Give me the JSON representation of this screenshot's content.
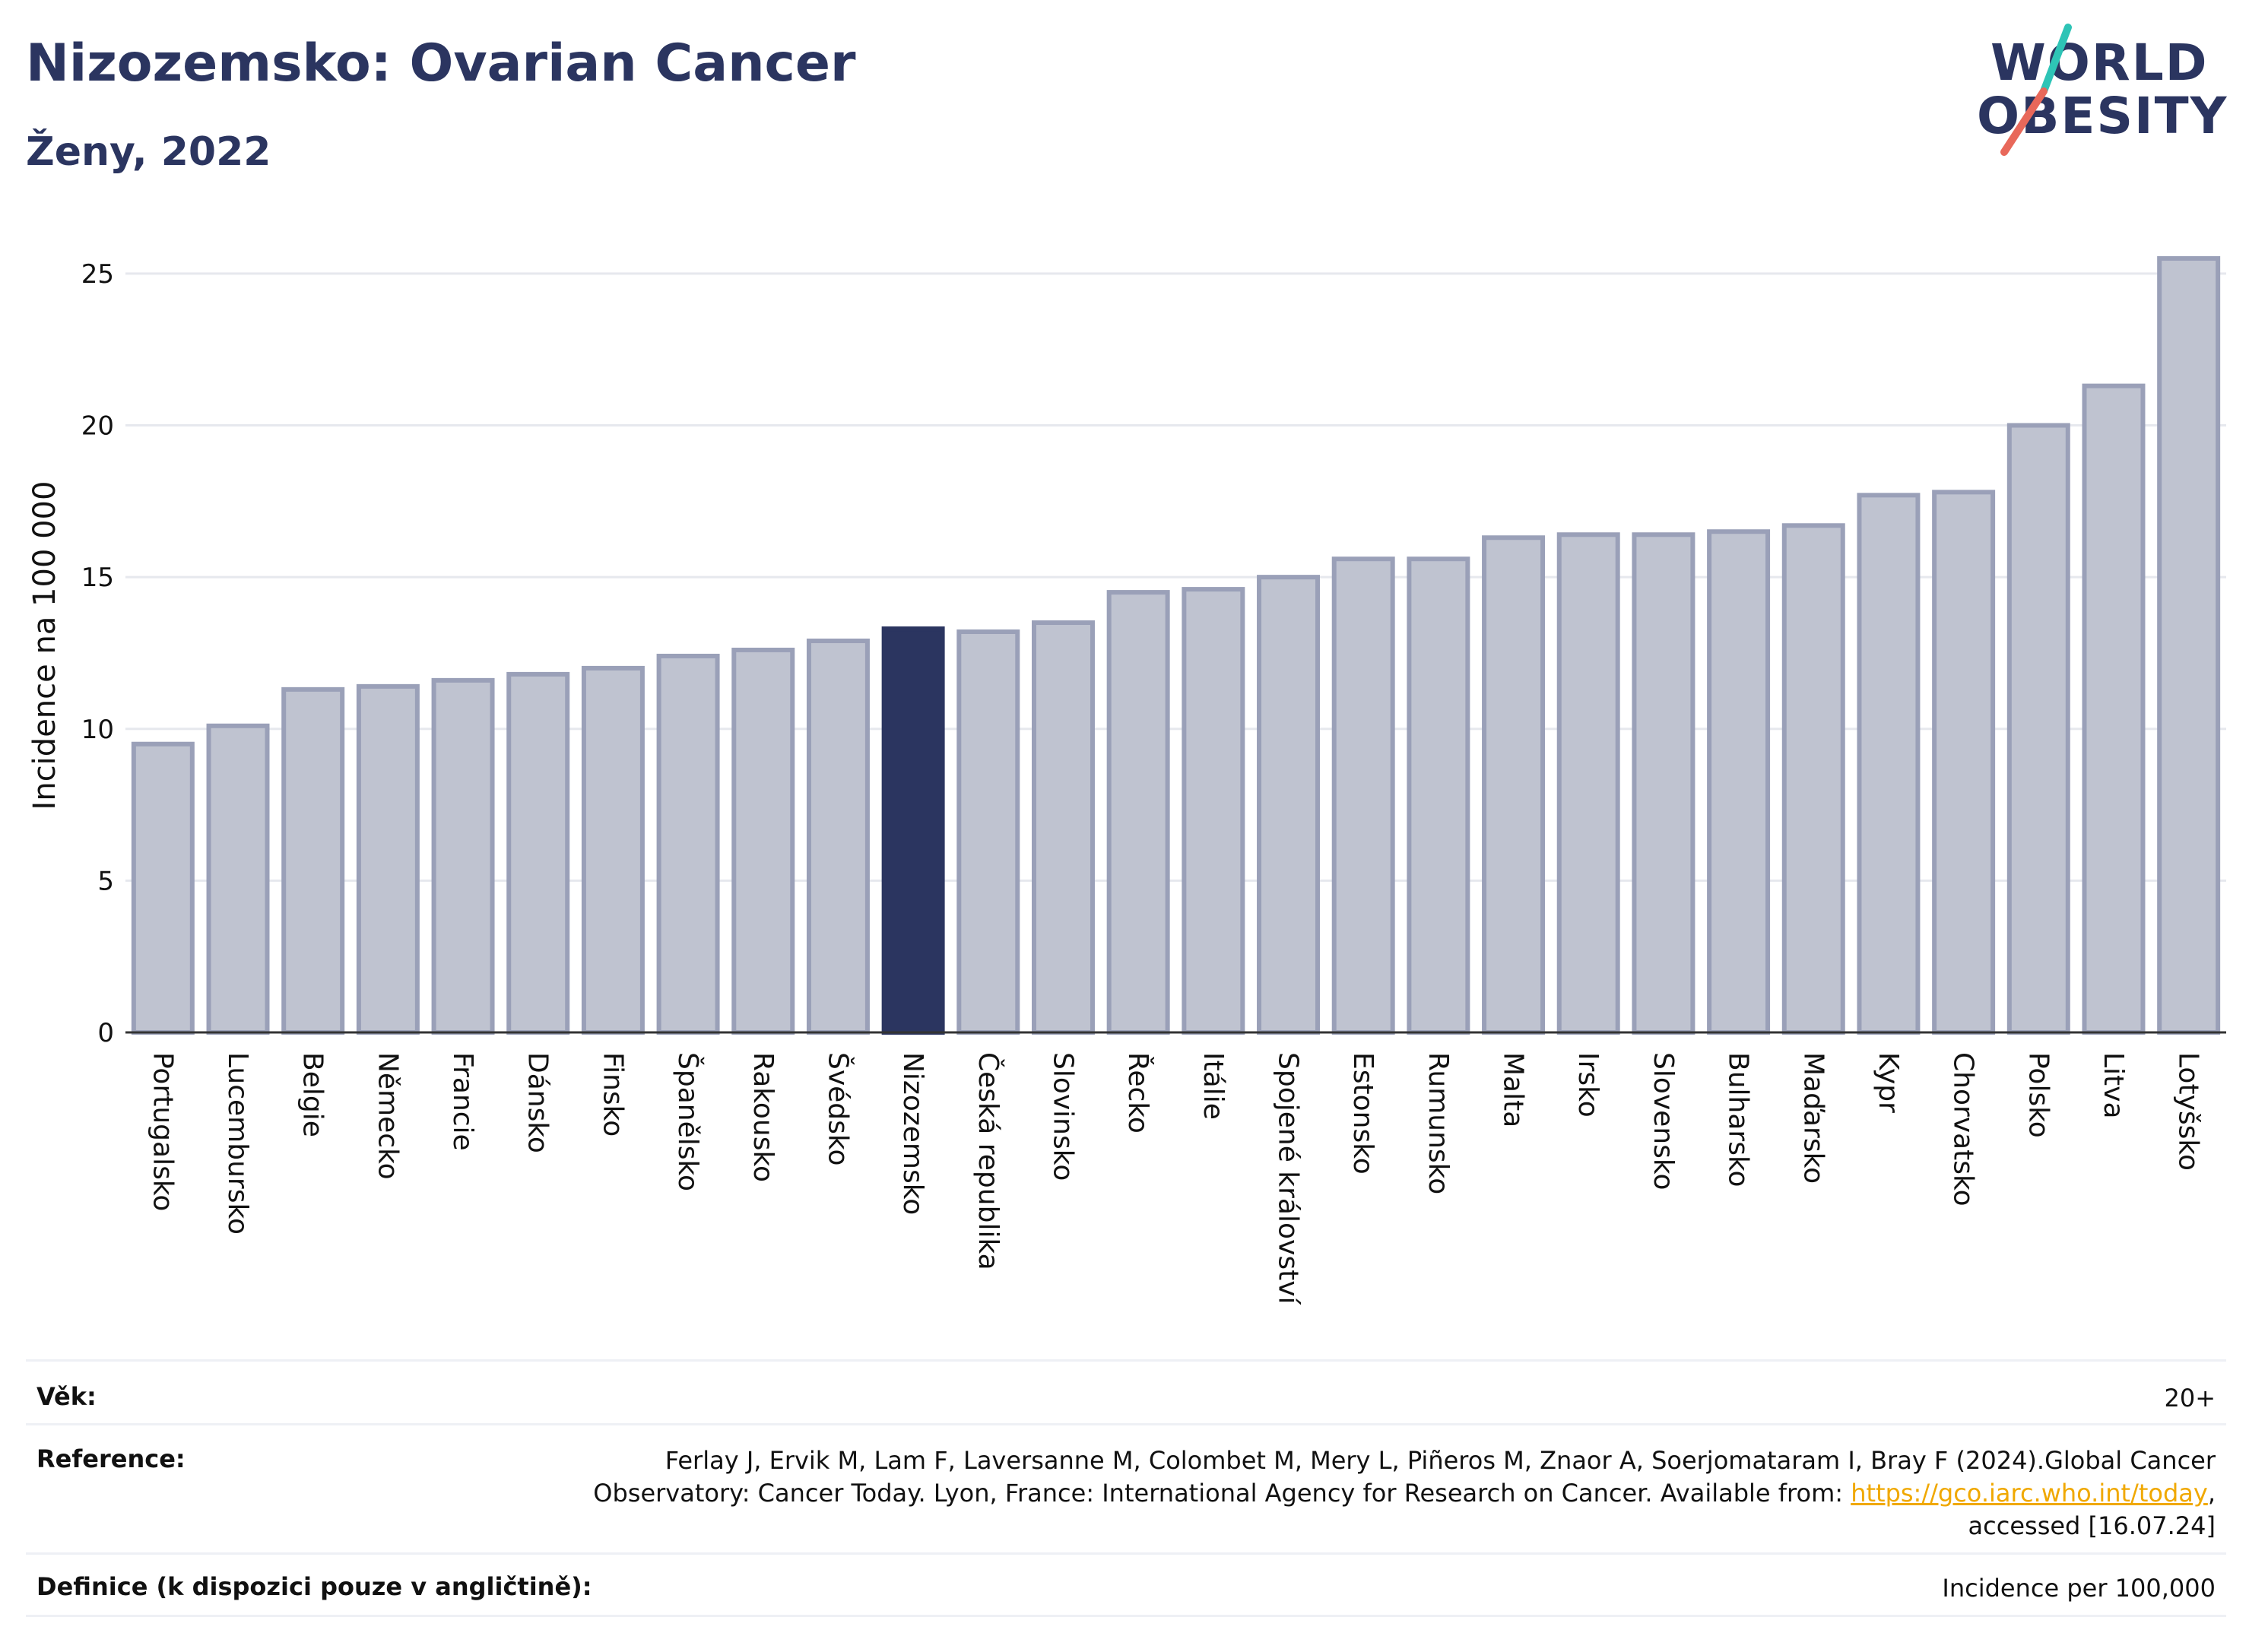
{
  "header": {
    "title": "Nizozemsko: Ovarian Cancer",
    "subtitle": "Ženy, 2022"
  },
  "logo": {
    "line1": "WORLD",
    "line2": "OBESITY",
    "colors": {
      "text": "#2b3560",
      "slash_top": "#2ec4b6",
      "slash_bottom": "#e8685a"
    }
  },
  "colors": {
    "bar_default": "#bfc3d0",
    "bar_border": "#9aa0b8",
    "bar_highlight": "#2b3560",
    "grid": "#e6e8ee",
    "axis": "#333333"
  },
  "chart_data": {
    "type": "bar",
    "ylabel": "Incidence na 100 000",
    "xlabel": "",
    "ylim": [
      0,
      26.5
    ],
    "yticks": [
      0,
      5,
      10,
      15,
      20,
      25
    ],
    "grid": true,
    "highlight": "Nizozemsko",
    "categories": [
      "Portugalsko",
      "Lucembursko",
      "Belgie",
      "Německo",
      "Francie",
      "Dánsko",
      "Finsko",
      "Španělsko",
      "Rakousko",
      "Švédsko",
      "Nizozemsko",
      "Česká republika",
      "Slovinsko",
      "Řecko",
      "Itálie",
      "Spojené království",
      "Estonsko",
      "Rumunsko",
      "Malta",
      "Irsko",
      "Slovensko",
      "Bulharsko",
      "Maďarsko",
      "Kypr",
      "Chorvatsko",
      "Polsko",
      "Litva",
      "Lotyšsko"
    ],
    "values": [
      9.5,
      10.1,
      11.3,
      11.4,
      11.6,
      11.8,
      12.0,
      12.4,
      12.6,
      12.9,
      13.3,
      13.2,
      13.5,
      14.5,
      14.6,
      15.0,
      15.6,
      15.6,
      16.3,
      16.4,
      16.4,
      16.5,
      16.7,
      17.7,
      17.8,
      20.0,
      21.3,
      25.5
    ]
  },
  "footer": {
    "age": {
      "label": "Věk:",
      "value": "20+"
    },
    "reference": {
      "label": "Reference:",
      "text_before": "Ferlay J, Ervik M, Lam F, Laversanne M, Colombet M, Mery L, Piñeros M, Znaor A, Soerjomataram I, Bray F (2024).Global Cancer Observatory: Cancer Today. Lyon, France: International Agency for Research on Cancer. Available from: ",
      "link": "https://gco.iarc.who.int/today",
      "text_after": ", accessed [16.07.24]"
    },
    "definition": {
      "label": "Definice (k dispozici pouze v angličtině):",
      "value": "Incidence per 100,000"
    }
  }
}
